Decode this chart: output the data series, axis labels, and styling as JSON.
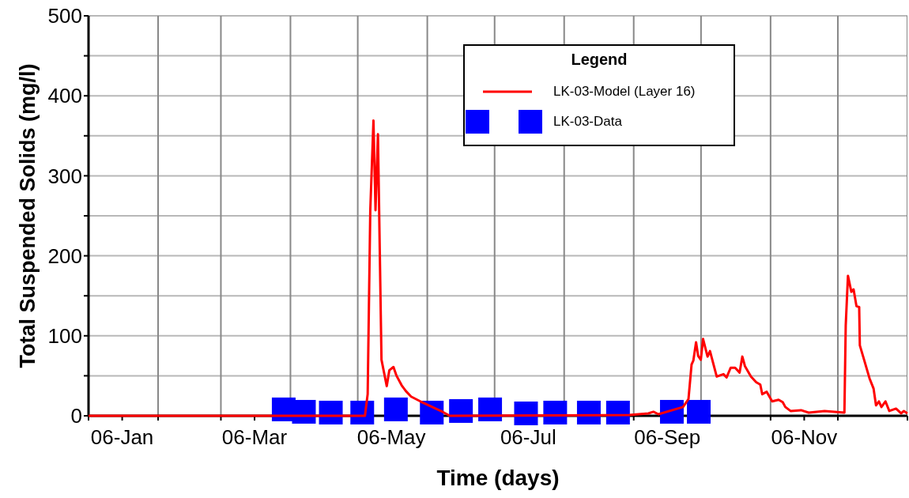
{
  "chart_data": {
    "type": "line",
    "xlabel": "Time (days)",
    "ylabel": "Total Suspended Solids (mg/l)",
    "legend_title": "Legend",
    "legend": "top right",
    "grid": true,
    "xlim": [
      "2006-01-01",
      "2007-01-01"
    ],
    "xticks": [
      {
        "value": "2006-01-01",
        "label": null
      },
      {
        "value": "2006-01-16",
        "label": "06-Jan"
      },
      {
        "value": "2006-02-01",
        "label": null
      },
      {
        "value": "2006-03-01",
        "label": null
      },
      {
        "value": "2006-03-16",
        "label": "06-Mar"
      },
      {
        "value": "2006-04-01",
        "label": null
      },
      {
        "value": "2006-05-01",
        "label": null
      },
      {
        "value": "2006-05-16",
        "label": "06-May"
      },
      {
        "value": "2006-06-01",
        "label": null
      },
      {
        "value": "2006-07-01",
        "label": null
      },
      {
        "value": "2006-07-16",
        "label": "06-Jul"
      },
      {
        "value": "2006-08-01",
        "label": null
      },
      {
        "value": "2006-09-01",
        "label": null
      },
      {
        "value": "2006-09-16",
        "label": "06-Sep"
      },
      {
        "value": "2006-10-01",
        "label": null
      },
      {
        "value": "2006-11-01",
        "label": null
      },
      {
        "value": "2006-11-16",
        "label": "06-Nov"
      },
      {
        "value": "2006-12-01",
        "label": null
      },
      {
        "value": "2007-01-01",
        "label": null
      }
    ],
    "ylim": [
      0,
      500
    ],
    "yticks": [
      0,
      {
        "value": 50,
        "label": null
      },
      100,
      {
        "value": 150,
        "label": null
      },
      200,
      {
        "value": 250,
        "label": null
      },
      300,
      {
        "value": 350,
        "label": null
      },
      400,
      {
        "value": 450,
        "label": null
      },
      500
    ],
    "series": [
      {
        "name": "LK-03-Model (Layer 16)",
        "color": "#ff0000",
        "marker": "none",
        "line_style": "solid",
        "x": [
          "2006-01-01",
          "2006-05-04T05:00",
          "2006-05-05T10:00",
          "2006-05-06T14:00",
          "2006-05-08T00:00",
          "2006-05-08T22:00",
          "2006-05-10T00:00",
          "2006-05-11T14:00",
          "2006-05-13T22:00",
          "2006-05-15T02:00",
          "2006-05-16T22:00",
          "2006-05-18T07:00",
          "2006-05-20T14:00",
          "2006-05-22T10:00",
          "2006-05-24T19:00",
          "2006-05-28T22:00",
          "2006-06-03T05:00",
          "2006-06-07T19:00",
          "2006-06-11",
          "2006-08-30",
          "2006-09-07T12:00",
          "2006-09-09T19:00",
          "2006-09-12",
          "2006-09-23",
          "2006-09-25T10:00",
          "2006-09-26T19:00",
          "2006-09-27T14:00",
          "2006-09-28T19:00",
          "2006-09-29T17:00",
          "2006-09-30T22:00",
          "2006-10-01T22:00",
          "2006-10-03T22:00",
          "2006-10-05",
          "2006-10-08",
          "2006-10-11",
          "2006-10-12T10:00",
          "2006-10-14T05:00",
          "2006-10-16T05:00",
          "2006-10-18T05:00",
          "2006-10-19T10:00",
          "2006-10-20T14:00",
          "2006-10-23T07:00",
          "2006-10-25T14:00",
          "2006-10-27T10:00",
          "2006-10-28T07:00",
          "2006-10-30T07:00",
          "2006-11-01T17:00",
          "2006-11-04T14:00",
          "2006-11-06T10:00",
          "2006-11-07T14:00",
          "2006-11-09T22:00",
          "2006-11-14T14:00",
          "2006-11-18",
          "2006-11-25T02:00",
          "2006-12-03T22:00",
          "2006-12-04T12:00",
          "2006-12-05T12:00",
          "2006-12-07",
          "2006-12-08",
          "2006-12-09T07:00",
          "2006-12-10T12:00",
          "2006-12-10T19:00",
          "2006-12-12T19:00",
          "2006-12-15T02:00",
          "2006-12-16T22:00",
          "2006-12-18",
          "2006-12-19T07:00",
          "2006-12-20T10:00",
          "2006-12-22T05:00",
          "2006-12-23T22:00",
          "2006-12-26T22:00",
          "2006-12-29T05:00",
          "2006-12-30T10:00",
          "2007-01-01"
        ],
        "values": [
          0,
          0,
          27,
          257,
          369,
          257,
          352,
          70,
          37,
          57,
          61,
          50,
          38,
          31,
          24,
          18,
          11,
          5,
          0,
          1,
          3,
          5,
          2,
          11,
          21,
          64,
          69,
          92,
          75,
          70,
          96,
          74,
          81,
          49,
          52,
          48,
          60,
          60,
          54,
          74,
          62,
          49,
          42,
          39,
          27,
          30,
          18,
          20,
          17,
          11,
          6,
          7,
          4,
          6,
          4,
          113,
          175,
          155,
          158,
          137,
          136,
          88,
          69,
          47,
          34,
          13,
          18,
          11,
          18,
          6,
          9,
          3,
          6,
          3
        ]
      },
      {
        "name": "LK-03-Data",
        "type": "scatter",
        "color": "#0000ff",
        "marker": "square",
        "x": [
          "2006-03-29",
          "2006-04-07",
          "2006-04-19",
          "2006-05-03",
          "2006-05-18",
          "2006-06-03",
          "2006-06-16",
          "2006-06-29",
          "2006-07-15",
          "2006-07-28",
          "2006-08-12",
          "2006-08-25",
          "2006-09-18",
          "2006-09-30"
        ],
        "values": [
          8,
          5,
          4,
          4,
          8,
          4,
          6,
          8,
          3,
          4,
          4,
          4,
          5,
          5
        ]
      }
    ]
  }
}
